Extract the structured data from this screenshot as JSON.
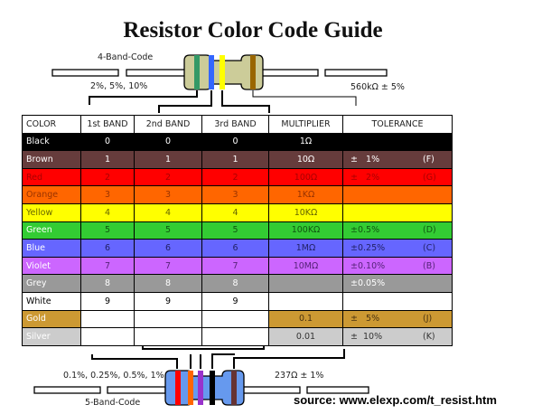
{
  "title": "Resistor Color Code Guide",
  "four_band": {
    "label": "4-Band-Code",
    "tolerance_range": "2%, 5%, 10%",
    "example": "560kΩ ± 5%",
    "bands": [
      "#339966",
      "#3366ff",
      "#ffff00",
      "#996600"
    ],
    "body_color": "#cccc99"
  },
  "five_band": {
    "label": "5-Band-Code",
    "tolerance_range": "0.1%, 0.25%, 0.5%, 1%",
    "example": "237Ω ± 1%",
    "bands": [
      "#ff0000",
      "#ff6600",
      "#9933cc",
      "#000000",
      "#663333"
    ],
    "body_color": "#6699ee"
  },
  "table": {
    "headers": [
      "COLOR",
      "1st BAND",
      "2nd BAND",
      "3rd BAND",
      "MULTIPLIER",
      "TOLERANCE"
    ],
    "rows": [
      {
        "color": "Black",
        "b1": "0",
        "b2": "0",
        "b3": "0",
        "mult": "1Ω",
        "tol": "",
        "code": "",
        "bg": "#000000",
        "fg": "#ffffff"
      },
      {
        "color": "Brown",
        "b1": "1",
        "b2": "1",
        "b3": "1",
        "mult": "10Ω",
        "tol": "±   1%",
        "code": "(F)",
        "bg": "#663c3c",
        "fg": "#ffffff"
      },
      {
        "color": "Red",
        "b1": "2",
        "b2": "2",
        "b3": "2",
        "mult": "100Ω",
        "tol": "±   2%",
        "code": "(G)",
        "bg": "#ff0000",
        "fg": "#aa0000"
      },
      {
        "color": "Orange",
        "b1": "3",
        "b2": "3",
        "b3": "3",
        "mult": "1KΩ",
        "tol": "",
        "code": "",
        "bg": "#ff6600",
        "fg": "#993300"
      },
      {
        "color": "Yellow",
        "b1": "4",
        "b2": "4",
        "b3": "4",
        "mult": "10KΩ",
        "tol": "",
        "code": "",
        "bg": "#ffff00",
        "fg": "#666600"
      },
      {
        "color": "Green",
        "b1": "5",
        "b2": "5",
        "b3": "5",
        "mult": "100KΩ",
        "tol": "±0.5%",
        "code": "(D)",
        "bg": "#33cc33",
        "fg": "#115511"
      },
      {
        "color": "Blue",
        "b1": "6",
        "b2": "6",
        "b3": "6",
        "mult": "1MΩ",
        "tol": "±0.25%",
        "code": "(C)",
        "bg": "#6666ff",
        "fg": "#222266"
      },
      {
        "color": "Violet",
        "b1": "7",
        "b2": "7",
        "b3": "7",
        "mult": "10MΩ",
        "tol": "±0.10%",
        "code": "(B)",
        "bg": "#cc66ff",
        "fg": "#552277"
      },
      {
        "color": "Grey",
        "b1": "8",
        "b2": "8",
        "b3": "8",
        "mult": "",
        "tol": "±0.05%",
        "code": "",
        "bg": "#999999",
        "fg": "#ffffff"
      },
      {
        "color": "White",
        "b1": "9",
        "b2": "9",
        "b3": "9",
        "mult": "",
        "tol": "",
        "code": "",
        "bg": "#ffffff",
        "fg": "#000000"
      },
      {
        "color": "Gold",
        "b1": "",
        "b2": "",
        "b3": "",
        "mult": "0.1",
        "tol": "±   5%",
        "code": "(J)",
        "bg": "#cc9933",
        "fg": "#4a3311",
        "partial": true
      },
      {
        "color": "Silver",
        "b1": "",
        "b2": "",
        "b3": "",
        "mult": "0.01",
        "tol": "±  10%",
        "code": "(K)",
        "bg": "#cccccc",
        "fg": "#333333",
        "partial": true
      }
    ]
  },
  "source": "source:  www.elexp.com/t_resist.htm"
}
